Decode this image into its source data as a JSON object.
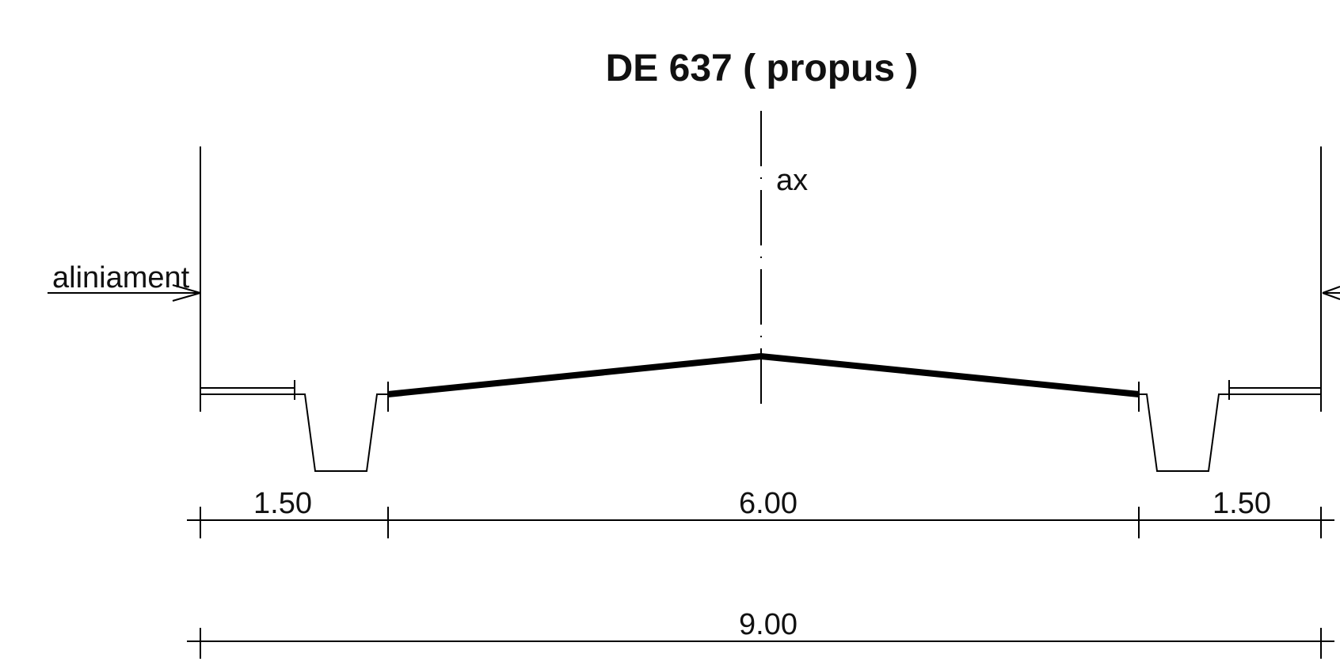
{
  "title": "DE 637 ( propus )",
  "axis_label": "ax",
  "alignment_label": "aliniament",
  "dimensions": {
    "left_ditch": "1.50",
    "carriageway": "6.00",
    "right_ditch": "1.50",
    "total": "9.00"
  }
}
